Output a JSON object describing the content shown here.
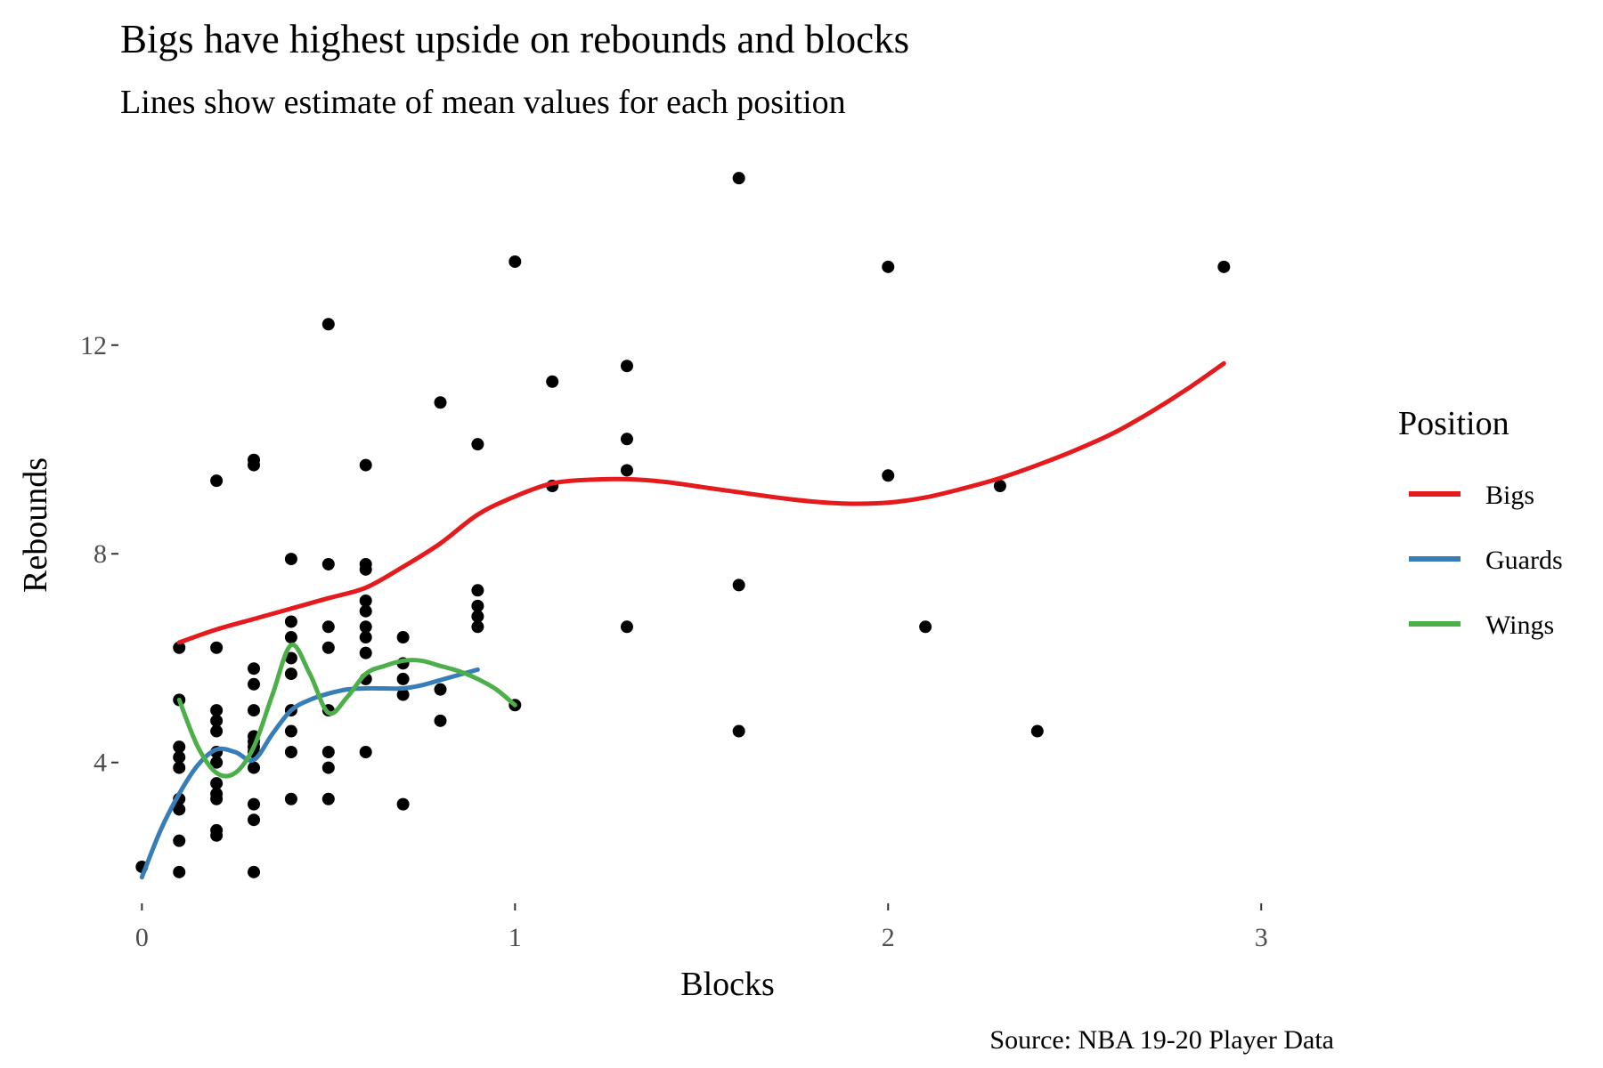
{
  "chart_data": {
    "type": "scatter",
    "title": "Bigs have highest upside on rebounds and blocks",
    "subtitle": "Lines show estimate of mean values for each position",
    "xlabel": "Blocks",
    "ylabel": "Rebounds",
    "caption": "Source: NBA 19-20 Player Data",
    "xlim": [
      -0.07,
      3.2
    ],
    "ylim": [
      1.3,
      15.8
    ],
    "x_ticks": [
      0,
      1,
      2,
      3
    ],
    "y_ticks": [
      4,
      8,
      12
    ],
    "grid": false,
    "legend_position": "right",
    "legend_title": "Position",
    "points": [
      {
        "x": 0,
        "y": 2.0
      },
      {
        "x": 0.1,
        "y": 6.2
      },
      {
        "x": 0.1,
        "y": 5.2
      },
      {
        "x": 0.1,
        "y": 4.3
      },
      {
        "x": 0.1,
        "y": 4.1
      },
      {
        "x": 0.1,
        "y": 3.9
      },
      {
        "x": 0.1,
        "y": 3.3
      },
      {
        "x": 0.1,
        "y": 3.1
      },
      {
        "x": 0.1,
        "y": 2.5
      },
      {
        "x": 0.1,
        "y": 1.9
      },
      {
        "x": 0.2,
        "y": 9.4
      },
      {
        "x": 0.2,
        "y": 6.2
      },
      {
        "x": 0.2,
        "y": 5.0
      },
      {
        "x": 0.2,
        "y": 4.8
      },
      {
        "x": 0.2,
        "y": 4.6
      },
      {
        "x": 0.2,
        "y": 4.2
      },
      {
        "x": 0.2,
        "y": 4.0
      },
      {
        "x": 0.2,
        "y": 3.6
      },
      {
        "x": 0.2,
        "y": 3.4
      },
      {
        "x": 0.2,
        "y": 3.3
      },
      {
        "x": 0.2,
        "y": 2.7
      },
      {
        "x": 0.2,
        "y": 2.6
      },
      {
        "x": 0.3,
        "y": 9.8
      },
      {
        "x": 0.3,
        "y": 9.7
      },
      {
        "x": 0.3,
        "y": 5.8
      },
      {
        "x": 0.3,
        "y": 5.5
      },
      {
        "x": 0.3,
        "y": 5.0
      },
      {
        "x": 0.3,
        "y": 4.5
      },
      {
        "x": 0.3,
        "y": 4.4
      },
      {
        "x": 0.3,
        "y": 4.3
      },
      {
        "x": 0.3,
        "y": 4.2
      },
      {
        "x": 0.3,
        "y": 3.9
      },
      {
        "x": 0.3,
        "y": 3.2
      },
      {
        "x": 0.3,
        "y": 2.9
      },
      {
        "x": 0.3,
        "y": 1.9
      },
      {
        "x": 0.4,
        "y": 7.9
      },
      {
        "x": 0.4,
        "y": 6.7
      },
      {
        "x": 0.4,
        "y": 6.4
      },
      {
        "x": 0.4,
        "y": 6.0
      },
      {
        "x": 0.4,
        "y": 5.7
      },
      {
        "x": 0.4,
        "y": 5.0
      },
      {
        "x": 0.4,
        "y": 4.6
      },
      {
        "x": 0.4,
        "y": 4.2
      },
      {
        "x": 0.4,
        "y": 3.3
      },
      {
        "x": 0.5,
        "y": 12.4
      },
      {
        "x": 0.5,
        "y": 7.8
      },
      {
        "x": 0.5,
        "y": 6.6
      },
      {
        "x": 0.5,
        "y": 6.2
      },
      {
        "x": 0.5,
        "y": 5.0
      },
      {
        "x": 0.5,
        "y": 4.2
      },
      {
        "x": 0.5,
        "y": 3.9
      },
      {
        "x": 0.5,
        "y": 3.3
      },
      {
        "x": 0.6,
        "y": 9.7
      },
      {
        "x": 0.6,
        "y": 7.8
      },
      {
        "x": 0.6,
        "y": 7.7
      },
      {
        "x": 0.6,
        "y": 7.1
      },
      {
        "x": 0.6,
        "y": 6.9
      },
      {
        "x": 0.6,
        "y": 6.6
      },
      {
        "x": 0.6,
        "y": 6.4
      },
      {
        "x": 0.6,
        "y": 6.1
      },
      {
        "x": 0.6,
        "y": 5.6
      },
      {
        "x": 0.6,
        "y": 4.2
      },
      {
        "x": 0.7,
        "y": 6.4
      },
      {
        "x": 0.7,
        "y": 5.9
      },
      {
        "x": 0.7,
        "y": 5.6
      },
      {
        "x": 0.7,
        "y": 5.3
      },
      {
        "x": 0.7,
        "y": 3.2
      },
      {
        "x": 0.8,
        "y": 10.9
      },
      {
        "x": 0.8,
        "y": 5.4
      },
      {
        "x": 0.8,
        "y": 4.8
      },
      {
        "x": 0.9,
        "y": 10.1
      },
      {
        "x": 0.9,
        "y": 7.3
      },
      {
        "x": 0.9,
        "y": 7.0
      },
      {
        "x": 0.9,
        "y": 6.8
      },
      {
        "x": 0.9,
        "y": 6.6
      },
      {
        "x": 1.0,
        "y": 13.6
      },
      {
        "x": 1.0,
        "y": 5.1
      },
      {
        "x": 1.1,
        "y": 11.3
      },
      {
        "x": 1.1,
        "y": 9.3
      },
      {
        "x": 1.3,
        "y": 11.6
      },
      {
        "x": 1.3,
        "y": 10.2
      },
      {
        "x": 1.3,
        "y": 9.6
      },
      {
        "x": 1.3,
        "y": 6.6
      },
      {
        "x": 1.6,
        "y": 15.2
      },
      {
        "x": 1.6,
        "y": 7.4
      },
      {
        "x": 1.6,
        "y": 4.6
      },
      {
        "x": 2.0,
        "y": 13.5
      },
      {
        "x": 2.0,
        "y": 9.5
      },
      {
        "x": 2.1,
        "y": 6.6
      },
      {
        "x": 2.3,
        "y": 9.3
      },
      {
        "x": 2.4,
        "y": 4.6
      },
      {
        "x": 2.9,
        "y": 13.5
      }
    ],
    "series": [
      {
        "name": "Bigs",
        "color": "#e41a1c",
        "x": [
          0.1,
          0.2,
          0.3,
          0.4,
          0.5,
          0.6,
          0.7,
          0.8,
          0.9,
          1.0,
          1.1,
          1.2,
          1.3,
          1.4,
          1.5,
          1.6,
          1.7,
          1.8,
          1.9,
          2.0,
          2.1,
          2.2,
          2.3,
          2.4,
          2.5,
          2.6,
          2.7,
          2.8,
          2.9
        ],
        "values": [
          6.3,
          6.55,
          6.75,
          6.95,
          7.15,
          7.35,
          7.75,
          8.2,
          8.75,
          9.1,
          9.35,
          9.42,
          9.43,
          9.38,
          9.28,
          9.18,
          9.08,
          9.0,
          8.96,
          8.98,
          9.08,
          9.25,
          9.45,
          9.7,
          9.98,
          10.3,
          10.7,
          11.15,
          11.65
        ]
      },
      {
        "name": "Guards",
        "color": "#377eb8",
        "x": [
          0.0,
          0.05,
          0.1,
          0.15,
          0.2,
          0.25,
          0.3,
          0.35,
          0.4,
          0.45,
          0.5,
          0.55,
          0.6,
          0.65,
          0.7,
          0.75,
          0.8,
          0.85,
          0.9
        ],
        "values": [
          1.8,
          2.7,
          3.4,
          3.95,
          4.25,
          4.2,
          4.05,
          4.55,
          5.0,
          5.2,
          5.32,
          5.4,
          5.42,
          5.42,
          5.42,
          5.48,
          5.58,
          5.68,
          5.78
        ]
      },
      {
        "name": "Wings",
        "color": "#4daf4a",
        "x": [
          0.1,
          0.15,
          0.2,
          0.25,
          0.3,
          0.35,
          0.4,
          0.45,
          0.5,
          0.55,
          0.6,
          0.65,
          0.7,
          0.75,
          0.8,
          0.85,
          0.9,
          0.95,
          1.0
        ],
        "values": [
          5.2,
          4.3,
          3.8,
          3.8,
          4.3,
          5.3,
          6.25,
          5.7,
          4.95,
          5.25,
          5.7,
          5.85,
          5.95,
          5.95,
          5.85,
          5.75,
          5.6,
          5.4,
          5.1
        ]
      }
    ]
  }
}
